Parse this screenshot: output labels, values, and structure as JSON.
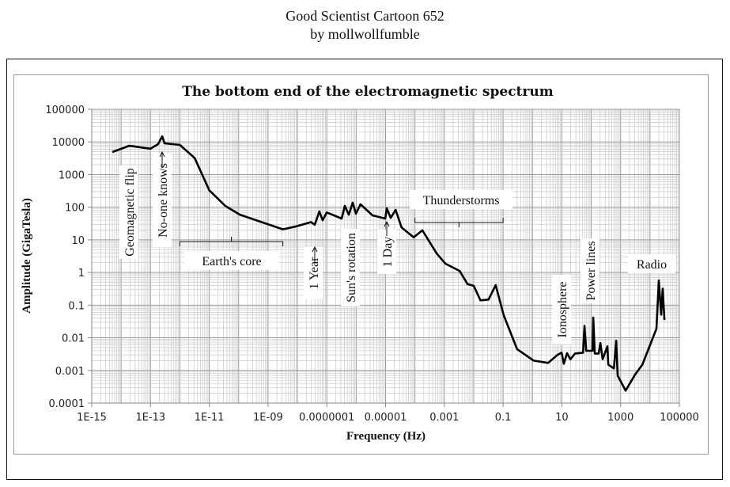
{
  "header": {
    "title": "Good Scientist Cartoon 652",
    "byline": "by mollwollfumble"
  },
  "chart_data": {
    "type": "line",
    "title": "The bottom end of the electromagnetic spectrum",
    "xlabel": "Frequency (Hz)",
    "ylabel": "Amplitude  (GigaTesla)",
    "xscale": "log",
    "yscale": "log",
    "xlim": [
      1e-15,
      100000
    ],
    "ylim": [
      0.0001,
      100000
    ],
    "grid": true,
    "legend": "none",
    "x_tick_labels": [
      "1E-15",
      "1E-13",
      "1E-11",
      "1E-09",
      "0.0000001",
      "0.00001",
      "0.001",
      "0.1",
      "10",
      "1000",
      "100000"
    ],
    "x_tick_values": [
      1e-15,
      1e-13,
      1e-11,
      1e-09,
      1e-07,
      1e-05,
      0.001,
      0.1,
      10,
      1000,
      100000
    ],
    "y_tick_labels": [
      "100000",
      "10000",
      "1000",
      "100",
      "10",
      "1",
      "0.1",
      "0.01",
      "0.001",
      "0.0001"
    ],
    "y_tick_values": [
      100000,
      10000,
      1000,
      100,
      10,
      1,
      0.1,
      0.01,
      0.001,
      0.0001
    ],
    "series": [
      {
        "name": "Amplitude",
        "color": "#000000",
        "x": [
          5e-15,
          1.9e-14,
          1e-13,
          1.8e-13,
          2.5e-13,
          3e-13,
          1e-12,
          3.2e-12,
          1e-11,
          3.5e-11,
          1.1e-10,
          3.2e-09,
          9.3e-09,
          2.9e-08,
          3.9e-08,
          5.6e-08,
          7.2e-08,
          1e-07,
          3.2e-07,
          4.1e-07,
          5.6e-07,
          7.6e-07,
          9.8e-07,
          1.4e-06,
          3.6e-06,
          9.8e-06,
          1.1e-05,
          1.5e-05,
          2.2e-05,
          3.5e-05,
          9e-05,
          0.00018,
          0.00055,
          0.0011,
          0.0033,
          0.0062,
          0.01,
          0.017,
          0.032,
          0.056,
          0.105,
          0.3,
          1.1,
          3.4,
          7.1,
          9.8,
          11.7,
          15.1,
          19.5,
          28.2,
          52.5,
          58.9,
          67.6,
          110,
          117,
          132,
          178,
          204,
          245,
          355,
          380,
          589,
          708,
          794,
          1480,
          3090,
          5500,
          16600,
          20000,
          24000,
          27000,
          31000
        ],
        "y": [
          4900,
          7600,
          6200,
          8500,
          14800,
          9100,
          8100,
          3200,
          330,
          110,
          59,
          21,
          26,
          35,
          29,
          74,
          40,
          69,
          45,
          110,
          59,
          138,
          63,
          123,
          56,
          45,
          93,
          47,
          83,
          24,
          12,
          19.5,
          3.8,
          1.86,
          1.12,
          0.44,
          0.39,
          0.14,
          0.148,
          0.41,
          0.049,
          0.0045,
          0.002,
          0.0017,
          0.003,
          0.0035,
          0.0016,
          0.0034,
          0.0022,
          0.0033,
          0.0035,
          0.023,
          0.004,
          0.004,
          0.042,
          0.0033,
          0.0033,
          0.0069,
          0.0022,
          0.0055,
          0.0015,
          0.00115,
          0.0081,
          0.00069,
          0.00024,
          0.00074,
          0.0015,
          0.019,
          0.57,
          0.051,
          0.32,
          0.035
        ]
      }
    ],
    "annotations": [
      {
        "text": "Geomagnetic flip",
        "x": 1e-14,
        "orientation": "vertical"
      },
      {
        "text": "No-one knows",
        "x": 2.5e-13,
        "orientation": "vertical",
        "arrow": true
      },
      {
        "text": "Earth's core",
        "x_range": [
          1e-12,
          3.2e-09
        ],
        "orientation": "horizontal",
        "bracket": true
      },
      {
        "text": "1 Year",
        "x": 3.2e-08,
        "orientation": "vertical",
        "arrow": true
      },
      {
        "text": "Sun's rotation",
        "x": 3.9e-07,
        "orientation": "vertical"
      },
      {
        "text": "1 Day",
        "x": 1.16e-05,
        "orientation": "vertical",
        "arrow": true
      },
      {
        "text": "Thunderstorms",
        "x_range": [
          0.0001,
          0.1
        ],
        "orientation": "horizontal",
        "bracket": true
      },
      {
        "text": "Ionosphere",
        "x": 8,
        "orientation": "vertical"
      },
      {
        "text": "Power lines",
        "x": 50,
        "orientation": "vertical"
      },
      {
        "text": "Radio",
        "x": 20000,
        "orientation": "horizontal"
      }
    ]
  }
}
